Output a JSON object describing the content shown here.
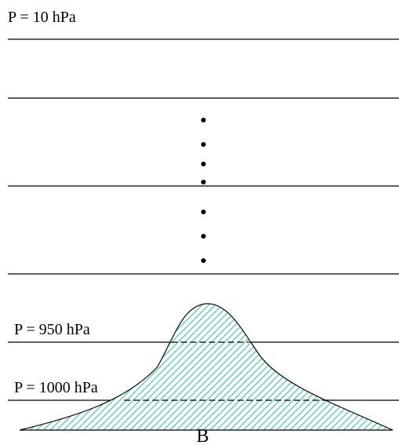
{
  "levels": {
    "top": "P = 10 hPa",
    "middle": "P = 950 hPa",
    "lower": "P = 1000 hPa"
  },
  "point": "B"
}
